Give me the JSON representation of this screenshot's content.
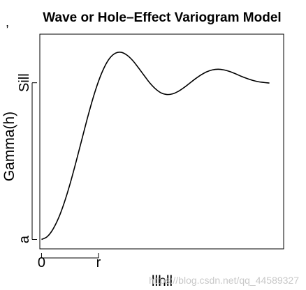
{
  "page": {
    "stray_mark": ","
  },
  "watermark": {
    "text": "https://blog.csdn.net/qq_44589327",
    "color": "#c8c8c8"
  },
  "chart_data": {
    "type": "line",
    "title": "Wave or Hole–Effect Variogram Model",
    "xlabel": "llhll",
    "ylabel": "Gamma(h)",
    "x_ticks": [
      {
        "value": 0,
        "label": "0"
      },
      {
        "value": 1,
        "label": "r"
      }
    ],
    "y_ticks": [
      {
        "value": 0,
        "label": "a"
      },
      {
        "value": 1,
        "label": "Sill"
      }
    ],
    "xlim": [
      -0.03,
      4.25
    ],
    "ylim": [
      -0.06,
      1.31
    ],
    "grid": false,
    "legend": "none",
    "line_color": "#000000",
    "series": [
      {
        "x": [
          0.0,
          0.1,
          0.2,
          0.3,
          0.4,
          0.5,
          0.6,
          0.7,
          0.8,
          0.9,
          1.0,
          1.1,
          1.2,
          1.3,
          1.4,
          1.5,
          1.6,
          1.7,
          1.8,
          1.9,
          2.0,
          2.1,
          2.2,
          2.3,
          2.4,
          2.5,
          2.6,
          2.7,
          2.8,
          2.9,
          3.0,
          3.1,
          3.2,
          3.3,
          3.4,
          3.5,
          3.6,
          3.7,
          3.8,
          3.9,
          4.0
        ],
        "y": [
          0.0,
          0.018,
          0.065,
          0.138,
          0.236,
          0.354,
          0.487,
          0.627,
          0.767,
          0.897,
          1.009,
          1.097,
          1.158,
          1.189,
          1.194,
          1.176,
          1.142,
          1.096,
          1.047,
          0.999,
          0.961,
          0.935,
          0.925,
          0.929,
          0.945,
          0.969,
          0.997,
          1.025,
          1.05,
          1.07,
          1.082,
          1.086,
          1.082,
          1.072,
          1.058,
          1.042,
          1.028,
          1.016,
          1.007,
          1.002,
          0.998
        ]
      }
    ]
  }
}
